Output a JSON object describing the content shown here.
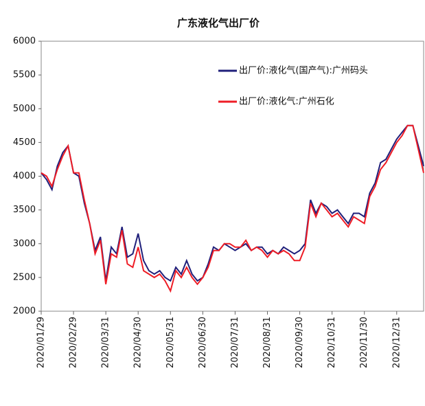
{
  "chart_data": {
    "type": "line",
    "title": "广东液化气出厂价",
    "categories": [
      "2020/01/29",
      null,
      null,
      null,
      null,
      null,
      "2020/02/29",
      null,
      null,
      null,
      null,
      null,
      "2020/03/31",
      null,
      null,
      null,
      null,
      null,
      "2020/04/30",
      null,
      null,
      null,
      null,
      null,
      "2020/05/31",
      null,
      null,
      null,
      null,
      null,
      "2020/06/30",
      null,
      null,
      null,
      null,
      null,
      "2020/07/31",
      null,
      null,
      null,
      null,
      null,
      "2020/08/31",
      null,
      null,
      null,
      null,
      null,
      "2020/09/30",
      null,
      null,
      null,
      null,
      null,
      "2020/10/31",
      null,
      null,
      null,
      null,
      null,
      "2020/11/30",
      null,
      null,
      null,
      null,
      null,
      "2020/12/31",
      null,
      null,
      null,
      null,
      null
    ],
    "series": [
      {
        "name": "出厂价:液化气(国产气):广州码头",
        "color": "#1f1f7a",
        "values": [
          4050,
          3950,
          3800,
          4150,
          4350,
          4450,
          4050,
          4000,
          3600,
          3300,
          2900,
          3100,
          2450,
          2950,
          2850,
          3250,
          2800,
          2850,
          3150,
          2750,
          2600,
          2550,
          2600,
          2500,
          2450,
          2650,
          2550,
          2750,
          2550,
          2450,
          2500,
          2700,
          2950,
          2900,
          3000,
          2950,
          2900,
          2950,
          3000,
          2900,
          2950,
          2950,
          2850,
          2900,
          2850,
          2950,
          2900,
          2850,
          2900,
          3000,
          3650,
          3450,
          3600,
          3550,
          3450,
          3500,
          3400,
          3300,
          3450,
          3450,
          3400,
          3750,
          3900,
          4200,
          4250,
          4400,
          4550,
          4650,
          4750,
          4750,
          4450,
          4150
        ]
      },
      {
        "name": "出厂价:液化气:广州石化",
        "color": "#ee1c25",
        "values": [
          4050,
          4000,
          3850,
          4100,
          4300,
          4450,
          4050,
          4050,
          3650,
          3300,
          2850,
          3050,
          2400,
          2850,
          2800,
          3200,
          2700,
          2650,
          2950,
          2600,
          2550,
          2500,
          2550,
          2450,
          2300,
          2600,
          2500,
          2650,
          2500,
          2400,
          2500,
          2650,
          2900,
          2900,
          3000,
          3000,
          2950,
          2950,
          3050,
          2900,
          2950,
          2900,
          2800,
          2900,
          2850,
          2900,
          2850,
          2750,
          2750,
          2950,
          3600,
          3400,
          3600,
          3500,
          3400,
          3450,
          3350,
          3250,
          3400,
          3350,
          3300,
          3700,
          3850,
          4100,
          4200,
          4350,
          4500,
          4600,
          4750,
          4750,
          4400,
          4050
        ]
      }
    ],
    "ylim": [
      2000,
      6000
    ],
    "yticks": [
      2000,
      2500,
      3000,
      3500,
      4000,
      4500,
      5000,
      5500,
      6000
    ],
    "legend": "upper right"
  }
}
